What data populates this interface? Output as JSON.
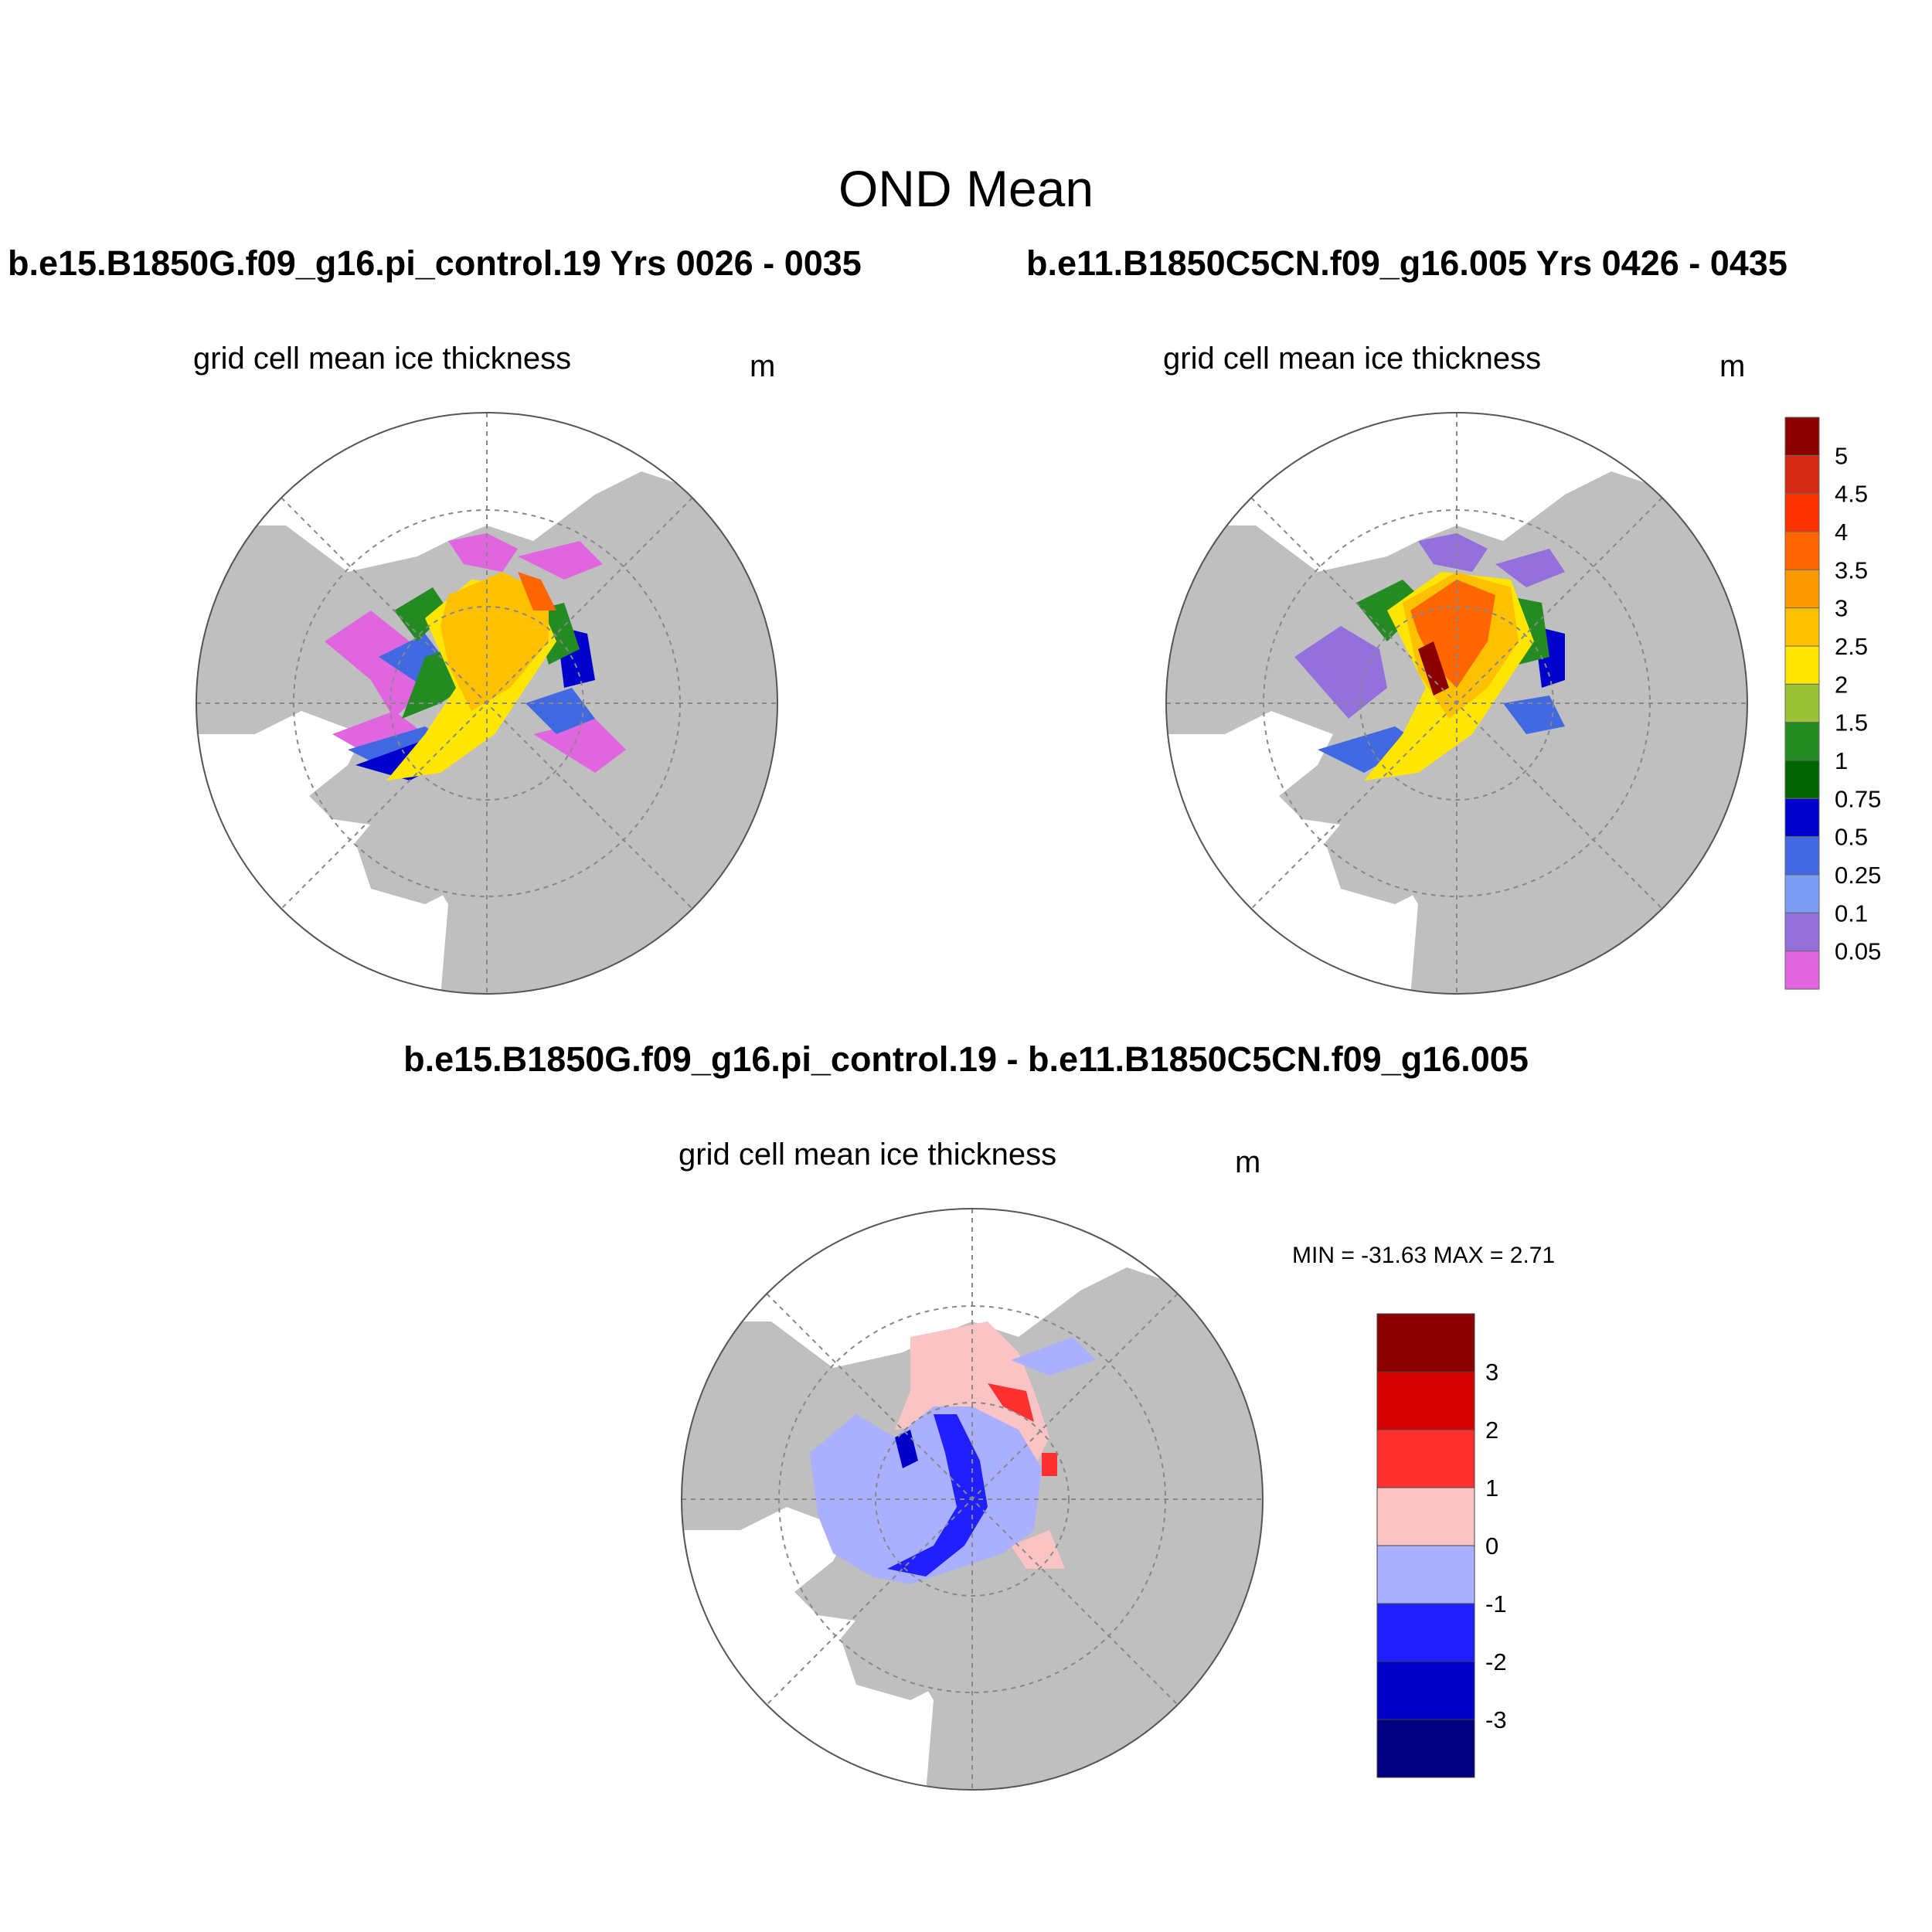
{
  "figure": {
    "title": "OND Mean"
  },
  "panels": [
    {
      "title": "b.e15.B1850G.f09_g16.pi_control.19  Yrs 0026 - 0035",
      "variable": "grid cell mean ice thickness",
      "units": "m"
    },
    {
      "title": "b.e11.B1850C5CN.f09_g16.005  Yrs 0426 - 0435",
      "variable": "grid cell mean ice thickness",
      "units": "m"
    },
    {
      "title": "b.e15.B1850G.f09_g16.pi_control.19 - b.e11.B1850C5CN.f09_g16.005",
      "variable": "grid cell mean ice thickness",
      "units": "m",
      "minmax": "MIN = -31.63 MAX =   2.71"
    }
  ],
  "colorbar_thickness": {
    "labels": [
      "5",
      "4.5",
      "4",
      "3.5",
      "3",
      "2.5",
      "2",
      "1.5",
      "1",
      "0.75",
      "0.5",
      "0.25",
      "0.1",
      "0.05"
    ],
    "colors": [
      "#8b0000",
      "#d42a13",
      "#ff3300",
      "#ff6600",
      "#ff9900",
      "#ffc000",
      "#ffe600",
      "#9bc236",
      "#238b22",
      "#006400",
      "#0000cd",
      "#4169e1",
      "#7b9cf2",
      "#9370db",
      "#e066e0"
    ]
  },
  "colorbar_diff": {
    "labels": [
      "3",
      "2",
      "1",
      "0",
      "-1",
      "-2",
      "-3"
    ],
    "colors": [
      "#8b0000",
      "#d50000",
      "#ff3030",
      "#fbc4c4",
      "#aab0ff",
      "#2020ff",
      "#0000c8",
      "#000080"
    ]
  },
  "colors": {
    "land": "#bfbfbf",
    "ocean": "#ffffff",
    "grid": "#888888"
  }
}
